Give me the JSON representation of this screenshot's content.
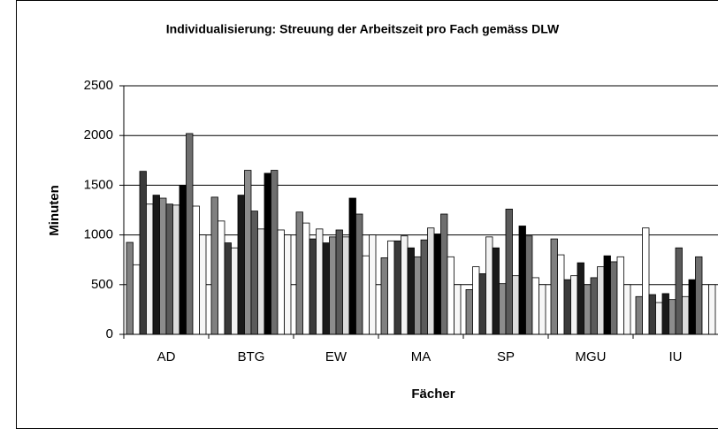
{
  "chart_data": {
    "type": "bar",
    "title": "Individualisierung: Streuung der Arbeitszeit pro Fach gemäss DLW",
    "x_label": "Fächer",
    "y_label": "Minuten",
    "categories": [
      "AD",
      "BTG",
      "EW",
      "MA",
      "SP",
      "MGU",
      "IU"
    ],
    "series": [
      {
        "color": "#808080",
        "values": [
          925,
          1380,
          1230,
          770,
          450,
          960,
          380
        ]
      },
      {
        "color": "#ffffff",
        "values": [
          700,
          1140,
          1120,
          940,
          680,
          800,
          1070
        ]
      },
      {
        "color": "#3a3a3a",
        "values": [
          1640,
          920,
          960,
          940,
          610,
          550,
          400
        ]
      },
      {
        "color": "#f2f2f2",
        "values": [
          1310,
          870,
          1060,
          990,
          980,
          590,
          320
        ]
      },
      {
        "color": "#1a1a1a",
        "values": [
          1400,
          1400,
          920,
          870,
          870,
          720,
          410
        ]
      },
      {
        "color": "#8c8c8c",
        "values": [
          1370,
          1650,
          980,
          780,
          510,
          500,
          350
        ]
      },
      {
        "color": "#5a5a5a",
        "values": [
          1310,
          1240,
          1050,
          950,
          1260,
          570,
          870
        ]
      },
      {
        "color": "#dcdcdc",
        "values": [
          1300,
          1060,
          980,
          1070,
          590,
          680,
          380
        ]
      },
      {
        "color": "#000000",
        "values": [
          1500,
          1620,
          1370,
          1010,
          1090,
          790,
          550
        ]
      },
      {
        "color": "#6e6e6e",
        "values": [
          2020,
          1650,
          1210,
          1210,
          990,
          730,
          780
        ]
      },
      {
        "color": "#ffffff",
        "values": [
          1290,
          1050,
          790,
          780,
          570,
          780,
          500
        ]
      },
      {
        "color": "#f7f7f7",
        "values": [
          1000,
          1000,
          1000,
          500,
          500,
          500,
          500
        ]
      }
    ],
    "ylim": [
      0,
      2500
    ],
    "yticks": [
      0,
      500,
      1000,
      1500,
      2000,
      2500
    ],
    "grid": true
  }
}
